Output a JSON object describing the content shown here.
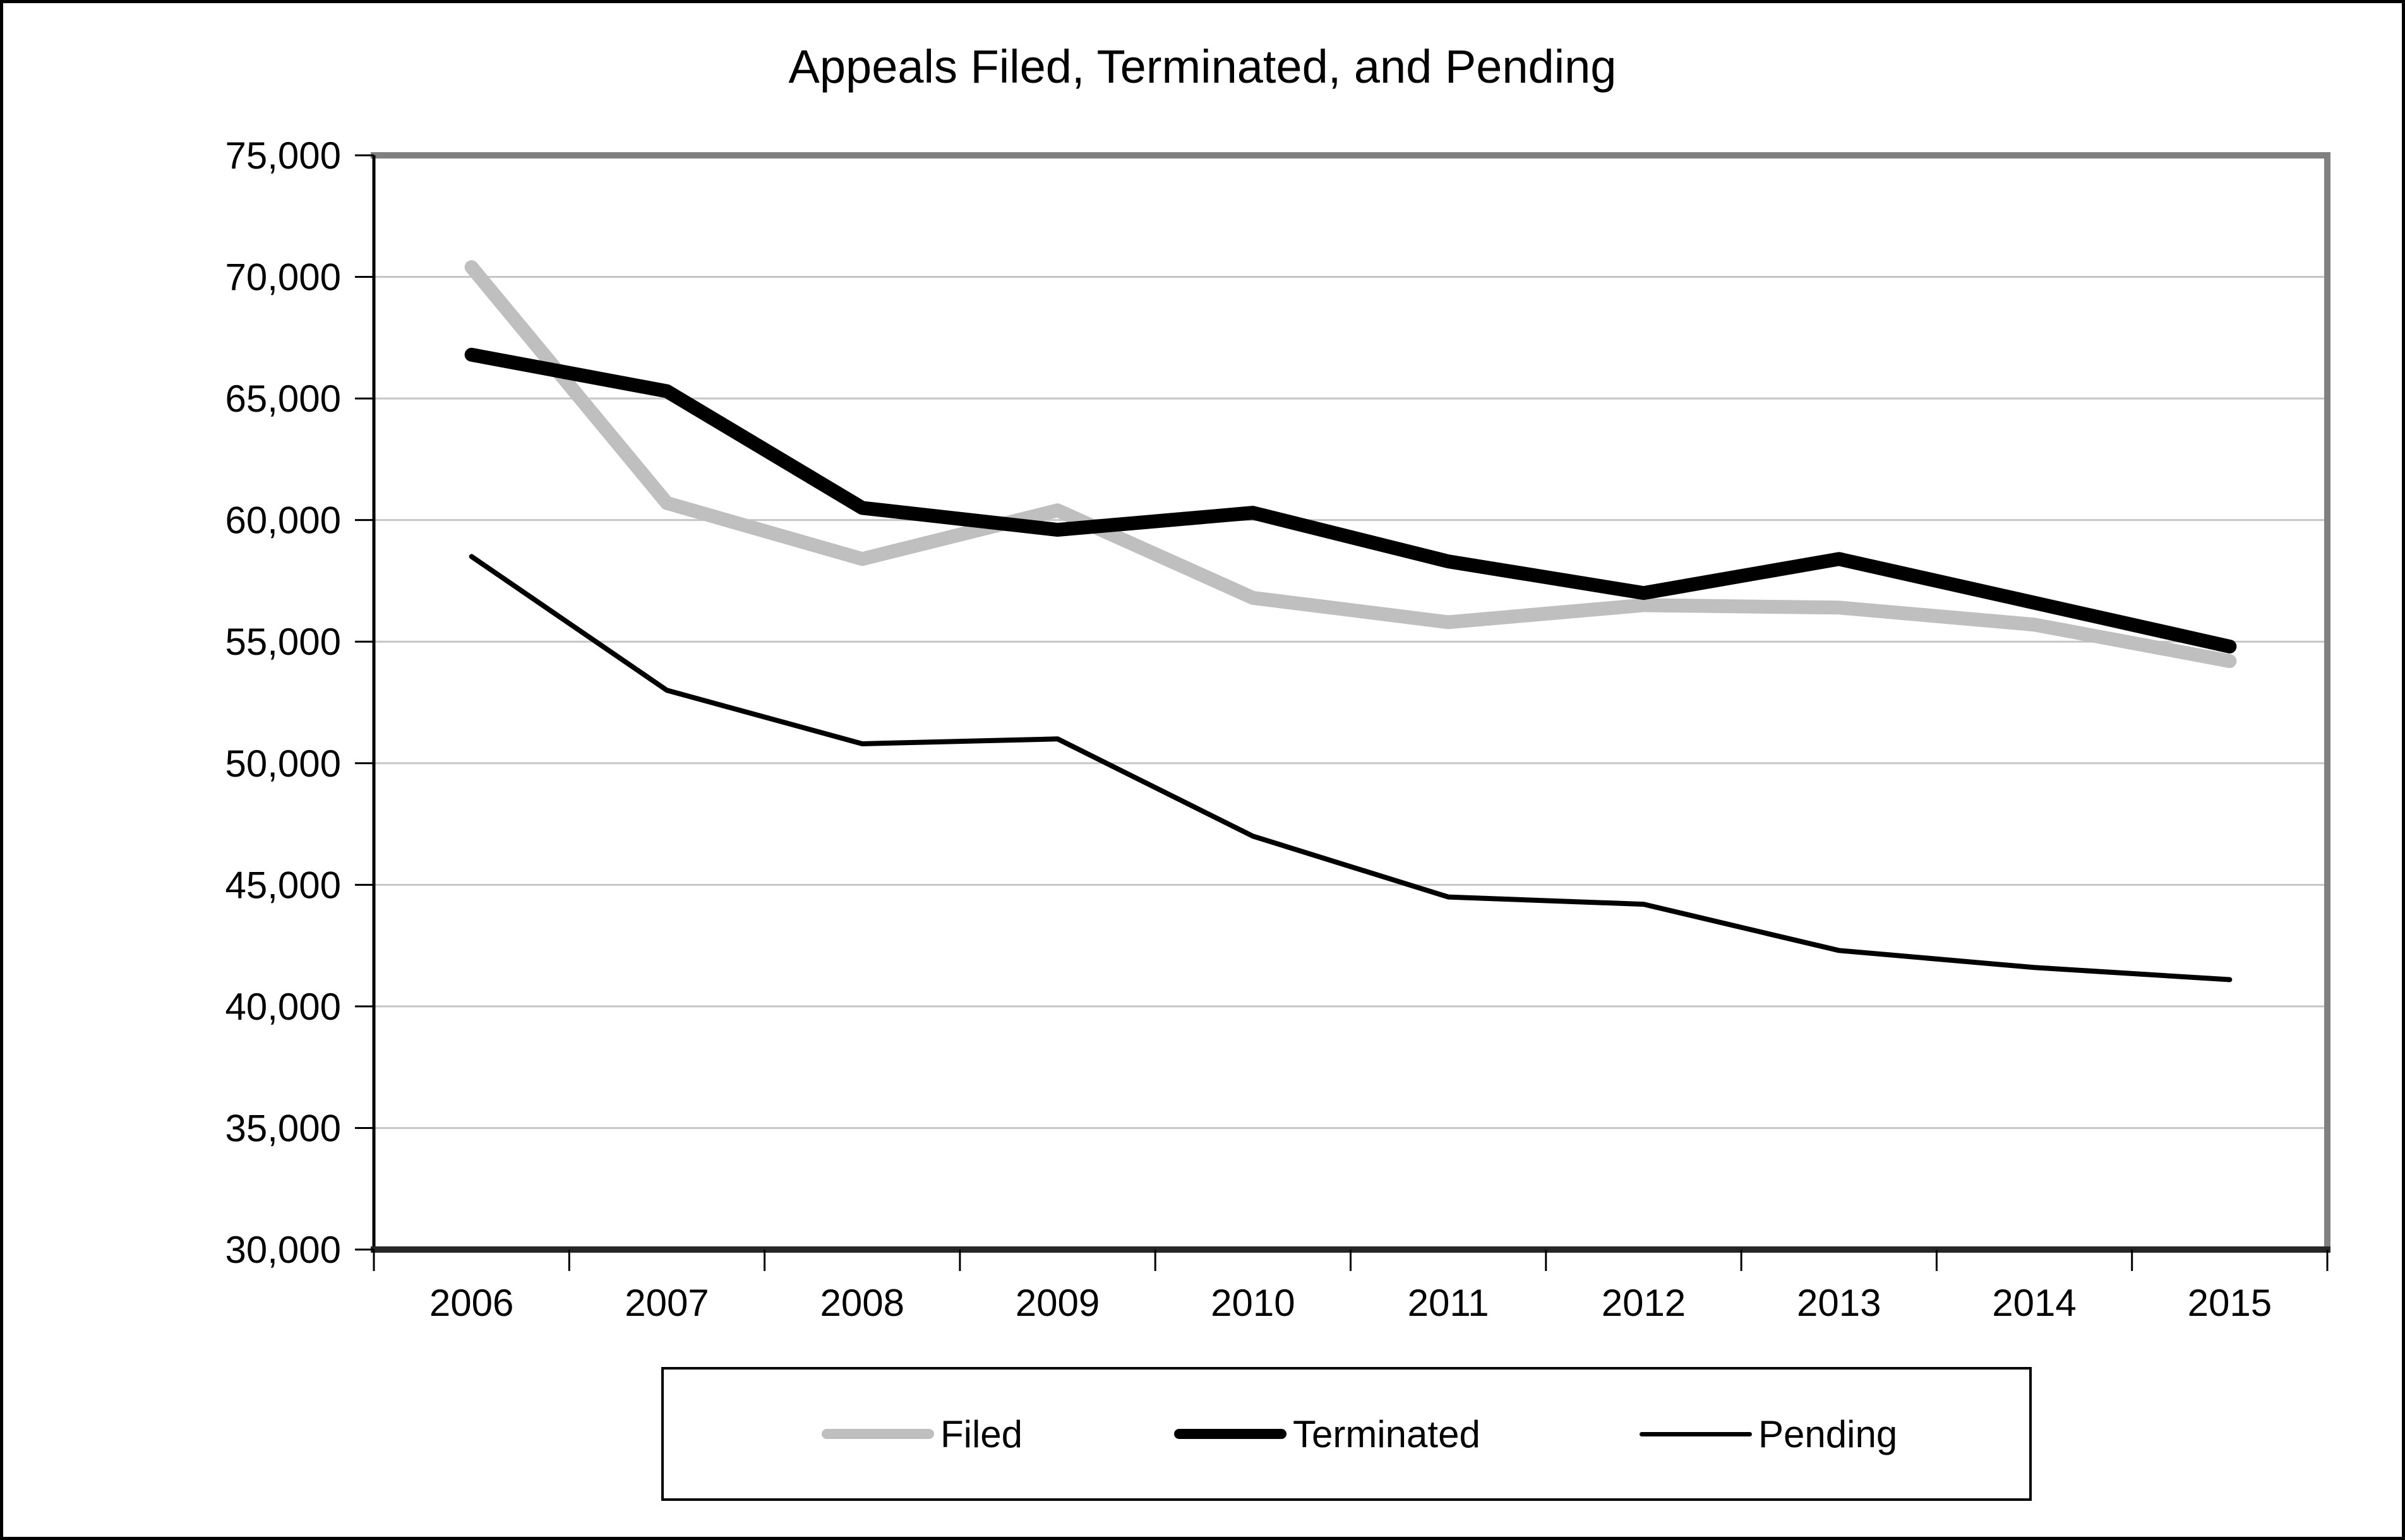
{
  "chart_data": {
    "type": "line",
    "title": "Appeals Filed, Terminated, and Pending",
    "categories": [
      "2006",
      "2007",
      "2008",
      "2009",
      "2010",
      "2011",
      "2012",
      "2013",
      "2014",
      "2015"
    ],
    "series": [
      {
        "name": "Filed",
        "color": "#BFBFBF",
        "thickness": "thick",
        "values": [
          70400,
          60700,
          58400,
          60400,
          56800,
          55800,
          56500,
          56400,
          55700,
          54200
        ]
      },
      {
        "name": "Terminated",
        "color": "#000000",
        "thickness": "thick",
        "values": [
          66800,
          65300,
          60500,
          59600,
          60300,
          58300,
          57000,
          58400,
          56600,
          54800
        ]
      },
      {
        "name": "Pending",
        "color": "#000000",
        "thickness": "thin",
        "values": [
          58500,
          53000,
          50800,
          51000,
          47000,
          44500,
          44200,
          42300,
          41600,
          41100
        ]
      }
    ],
    "xlabel": "",
    "ylabel": "",
    "ylim": [
      30000,
      75000
    ],
    "y_step": 5000,
    "y_tick_labels": [
      "30,000",
      "35,000",
      "40,000",
      "45,000",
      "50,000",
      "55,000",
      "60,000",
      "65,000",
      "70,000",
      "75,000"
    ],
    "grid": "horizontal",
    "legend_position": "bottom"
  }
}
